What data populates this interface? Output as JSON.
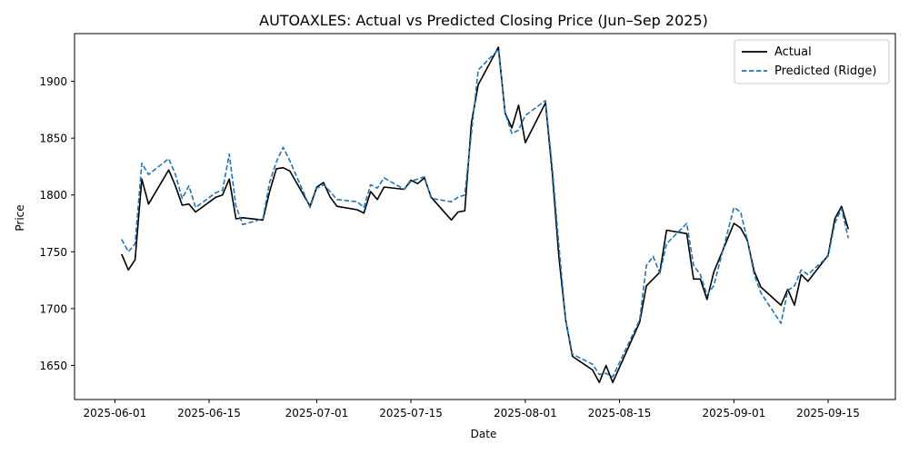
{
  "chart_data": {
    "type": "line",
    "title": "AUTOAXLES: Actual vs Predicted Closing Price (Jun–Sep 2025)",
    "xlabel": "Date",
    "ylabel": "Price",
    "xlim": [
      "2025-05-26",
      "2025-09-25"
    ],
    "ylim": [
      1620,
      1942
    ],
    "x_ticks": [
      "2025-06-01",
      "2025-06-15",
      "2025-07-01",
      "2025-07-15",
      "2025-08-01",
      "2025-08-15",
      "2025-09-01",
      "2025-09-15"
    ],
    "y_ticks": [
      1650,
      1700,
      1750,
      1800,
      1850,
      1900
    ],
    "grid": false,
    "legend_position": "top-right",
    "series": [
      {
        "name": "Actual",
        "color": "#000000",
        "style": "solid",
        "points": [
          [
            "2025-06-02",
            1748
          ],
          [
            "2025-06-03",
            1734
          ],
          [
            "2025-06-04",
            1743
          ],
          [
            "2025-06-05",
            1814
          ],
          [
            "2025-06-06",
            1792
          ],
          [
            "2025-06-09",
            1822
          ],
          [
            "2025-06-10",
            1808
          ],
          [
            "2025-06-11",
            1791
          ],
          [
            "2025-06-12",
            1792
          ],
          [
            "2025-06-13",
            1785
          ],
          [
            "2025-06-16",
            1798
          ],
          [
            "2025-06-17",
            1800
          ],
          [
            "2025-06-18",
            1814
          ],
          [
            "2025-06-19",
            1779
          ],
          [
            "2025-06-20",
            1780
          ],
          [
            "2025-06-23",
            1778
          ],
          [
            "2025-06-24",
            1803
          ],
          [
            "2025-06-25",
            1823
          ],
          [
            "2025-06-26",
            1824
          ],
          [
            "2025-06-27",
            1821
          ],
          [
            "2025-06-30",
            1790
          ],
          [
            "2025-07-01",
            1807
          ],
          [
            "2025-07-02",
            1811
          ],
          [
            "2025-07-03",
            1798
          ],
          [
            "2025-07-04",
            1790
          ],
          [
            "2025-07-07",
            1787
          ],
          [
            "2025-07-08",
            1784
          ],
          [
            "2025-07-09",
            1803
          ],
          [
            "2025-07-10",
            1796
          ],
          [
            "2025-07-11",
            1807
          ],
          [
            "2025-07-14",
            1805
          ],
          [
            "2025-07-15",
            1813
          ],
          [
            "2025-07-16",
            1810
          ],
          [
            "2025-07-17",
            1815
          ],
          [
            "2025-07-18",
            1798
          ],
          [
            "2025-07-21",
            1778
          ],
          [
            "2025-07-22",
            1785
          ],
          [
            "2025-07-23",
            1786
          ],
          [
            "2025-07-24",
            1864
          ],
          [
            "2025-07-25",
            1897
          ],
          [
            "2025-07-28",
            1930
          ],
          [
            "2025-07-29",
            1872
          ],
          [
            "2025-07-30",
            1859
          ],
          [
            "2025-07-31",
            1879
          ],
          [
            "2025-08-01",
            1846
          ],
          [
            "2025-08-04",
            1881
          ],
          [
            "2025-08-05",
            1820
          ],
          [
            "2025-08-06",
            1745
          ],
          [
            "2025-08-07",
            1690
          ],
          [
            "2025-08-08",
            1658
          ],
          [
            "2025-08-11",
            1646
          ],
          [
            "2025-08-12",
            1635
          ],
          [
            "2025-08-13",
            1650
          ],
          [
            "2025-08-14",
            1635
          ],
          [
            "2025-08-18",
            1688
          ],
          [
            "2025-08-19",
            1720
          ],
          [
            "2025-08-21",
            1732
          ],
          [
            "2025-08-22",
            1769
          ],
          [
            "2025-08-25",
            1766
          ],
          [
            "2025-08-26",
            1726
          ],
          [
            "2025-08-27",
            1726
          ],
          [
            "2025-08-28",
            1708
          ],
          [
            "2025-08-29",
            1732
          ],
          [
            "2025-09-01",
            1775
          ],
          [
            "2025-09-02",
            1771
          ],
          [
            "2025-09-03",
            1760
          ],
          [
            "2025-09-04",
            1733
          ],
          [
            "2025-09-05",
            1719
          ],
          [
            "2025-09-08",
            1703
          ],
          [
            "2025-09-09",
            1717
          ],
          [
            "2025-09-10",
            1703
          ],
          [
            "2025-09-11",
            1730
          ],
          [
            "2025-09-12",
            1724
          ],
          [
            "2025-09-15",
            1747
          ],
          [
            "2025-09-16",
            1779
          ],
          [
            "2025-09-17",
            1790
          ],
          [
            "2025-09-18",
            1770
          ]
        ]
      },
      {
        "name": "Predicted (Ridge)",
        "color": "#1f77b4",
        "style": "dashed",
        "points": [
          [
            "2025-06-02",
            1761
          ],
          [
            "2025-06-03",
            1750
          ],
          [
            "2025-06-04",
            1757
          ],
          [
            "2025-06-05",
            1828
          ],
          [
            "2025-06-06",
            1818
          ],
          [
            "2025-06-09",
            1832
          ],
          [
            "2025-06-10",
            1818
          ],
          [
            "2025-06-11",
            1797
          ],
          [
            "2025-06-12",
            1808
          ],
          [
            "2025-06-13",
            1789
          ],
          [
            "2025-06-16",
            1802
          ],
          [
            "2025-06-17",
            1804
          ],
          [
            "2025-06-18",
            1836
          ],
          [
            "2025-06-19",
            1790
          ],
          [
            "2025-06-20",
            1774
          ],
          [
            "2025-06-23",
            1779
          ],
          [
            "2025-06-24",
            1811
          ],
          [
            "2025-06-25",
            1829
          ],
          [
            "2025-06-26",
            1842
          ],
          [
            "2025-06-27",
            1830
          ],
          [
            "2025-06-30",
            1789
          ],
          [
            "2025-07-01",
            1806
          ],
          [
            "2025-07-02",
            1809
          ],
          [
            "2025-07-03",
            1803
          ],
          [
            "2025-07-04",
            1796
          ],
          [
            "2025-07-07",
            1794
          ],
          [
            "2025-07-08",
            1789
          ],
          [
            "2025-07-09",
            1809
          ],
          [
            "2025-07-10",
            1806
          ],
          [
            "2025-07-11",
            1815
          ],
          [
            "2025-07-14",
            1805
          ],
          [
            "2025-07-15",
            1812
          ],
          [
            "2025-07-16",
            1814
          ],
          [
            "2025-07-17",
            1816
          ],
          [
            "2025-07-18",
            1797
          ],
          [
            "2025-07-21",
            1794
          ],
          [
            "2025-07-22",
            1798
          ],
          [
            "2025-07-23",
            1800
          ],
          [
            "2025-07-24",
            1855
          ],
          [
            "2025-07-25",
            1910
          ],
          [
            "2025-07-28",
            1928
          ],
          [
            "2025-07-29",
            1872
          ],
          [
            "2025-07-30",
            1854
          ],
          [
            "2025-07-31",
            1857
          ],
          [
            "2025-08-01",
            1870
          ],
          [
            "2025-08-04",
            1883
          ],
          [
            "2025-08-05",
            1825
          ],
          [
            "2025-08-06",
            1755
          ],
          [
            "2025-08-07",
            1690
          ],
          [
            "2025-08-08",
            1660
          ],
          [
            "2025-08-11",
            1651
          ],
          [
            "2025-08-12",
            1642
          ],
          [
            "2025-08-13",
            1643
          ],
          [
            "2025-08-14",
            1640
          ],
          [
            "2025-08-18",
            1690
          ],
          [
            "2025-08-19",
            1738
          ],
          [
            "2025-08-20",
            1746
          ],
          [
            "2025-08-21",
            1731
          ],
          [
            "2025-08-22",
            1757
          ],
          [
            "2025-08-25",
            1775
          ],
          [
            "2025-08-26",
            1738
          ],
          [
            "2025-08-27",
            1730
          ],
          [
            "2025-08-28",
            1712
          ],
          [
            "2025-08-29",
            1720
          ],
          [
            "2025-09-01",
            1789
          ],
          [
            "2025-09-02",
            1785
          ],
          [
            "2025-09-03",
            1760
          ],
          [
            "2025-09-04",
            1730
          ],
          [
            "2025-09-05",
            1714
          ],
          [
            "2025-09-08",
            1687
          ],
          [
            "2025-09-09",
            1716
          ],
          [
            "2025-09-10",
            1720
          ],
          [
            "2025-09-11",
            1734
          ],
          [
            "2025-09-12",
            1730
          ],
          [
            "2025-09-15",
            1746
          ],
          [
            "2025-09-16",
            1775
          ],
          [
            "2025-09-17",
            1788
          ],
          [
            "2025-09-18",
            1762
          ]
        ]
      }
    ]
  }
}
